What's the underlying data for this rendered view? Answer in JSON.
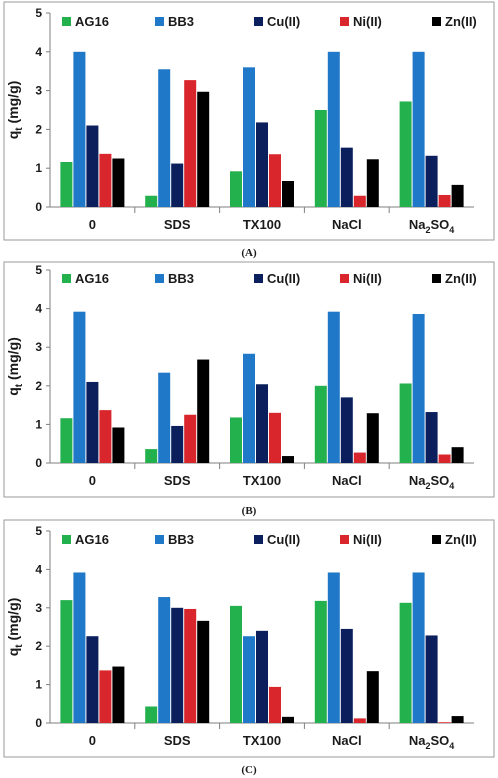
{
  "chart_data": [
    {
      "type": "bar",
      "caption": "(A)",
      "ylabel": "q",
      "ylabel_sub": "t",
      "ylabel_unit": " (mg/g)",
      "ylim": [
        0,
        5
      ],
      "yticks": [
        "0",
        "1",
        "2",
        "3",
        "4",
        "5"
      ],
      "categories": [
        "0",
        "SDS",
        "TX100",
        "NaCl",
        "Na2SO4"
      ],
      "category_labels": [
        {
          "text": "0"
        },
        {
          "text": "SDS"
        },
        {
          "text": "TX100"
        },
        {
          "text": "NaCl"
        },
        {
          "text": "Na",
          "sub": "2",
          "tail": "SO",
          "sub2": "4"
        }
      ],
      "series": [
        {
          "name": "AG16",
          "color": "#22b14c",
          "values": [
            1.16,
            0.29,
            0.92,
            2.5,
            2.72
          ]
        },
        {
          "name": "BB3",
          "color": "#1f78c8",
          "values": [
            4.0,
            3.55,
            3.6,
            4.0,
            4.0
          ]
        },
        {
          "name": "Cu(II)",
          "color": "#0a1f5c",
          "values": [
            2.1,
            1.12,
            2.18,
            1.53,
            1.32
          ]
        },
        {
          "name": "Ni(II)",
          "color": "#d9262c",
          "values": [
            1.37,
            3.27,
            1.36,
            0.29,
            0.31
          ]
        },
        {
          "name": "Zn(II)",
          "color": "#000000",
          "values": [
            1.25,
            2.97,
            0.67,
            1.23,
            0.57
          ]
        }
      ]
    },
    {
      "type": "bar",
      "caption": "(B)",
      "ylabel": "q",
      "ylabel_sub": "t",
      "ylabel_unit": " (mg/g)",
      "ylim": [
        0,
        5
      ],
      "yticks": [
        "0",
        "1",
        "2",
        "3",
        "4",
        "5"
      ],
      "categories": [
        "0",
        "SDS",
        "TX100",
        "NaCl",
        "Na2SO4"
      ],
      "category_labels": [
        {
          "text": "0"
        },
        {
          "text": "SDS"
        },
        {
          "text": "TX100"
        },
        {
          "text": "NaCl"
        },
        {
          "text": "Na",
          "sub": "2",
          "tail": "SO",
          "sub2": "4"
        }
      ],
      "series": [
        {
          "name": "AG16",
          "color": "#22b14c",
          "values": [
            1.16,
            0.36,
            1.18,
            2.0,
            2.06
          ]
        },
        {
          "name": "BB3",
          "color": "#1f78c8",
          "values": [
            3.92,
            2.34,
            2.83,
            3.92,
            3.86
          ]
        },
        {
          "name": "Cu(II)",
          "color": "#0a1f5c",
          "values": [
            2.1,
            0.96,
            2.04,
            1.7,
            1.32
          ]
        },
        {
          "name": "Ni(II)",
          "color": "#d9262c",
          "values": [
            1.37,
            1.25,
            1.3,
            0.27,
            0.22
          ]
        },
        {
          "name": "Zn(II)",
          "color": "#000000",
          "values": [
            0.92,
            2.68,
            0.18,
            1.29,
            0.41
          ]
        }
      ]
    },
    {
      "type": "bar",
      "caption": "(C)",
      "ylabel": "q",
      "ylabel_sub": "t",
      "ylabel_unit": " (mg/g)",
      "ylim": [
        0,
        5
      ],
      "yticks": [
        "0",
        "1",
        "2",
        "3",
        "4",
        "5"
      ],
      "categories": [
        "0",
        "SDS",
        "TX100",
        "NaCl",
        "Na2SO4"
      ],
      "category_labels": [
        {
          "text": "0"
        },
        {
          "text": "SDS"
        },
        {
          "text": "TX100"
        },
        {
          "text": "NaCl"
        },
        {
          "text": "Na",
          "sub": "2",
          "tail": "SO",
          "sub2": "4"
        }
      ],
      "series": [
        {
          "name": "AG16",
          "color": "#22b14c",
          "values": [
            3.2,
            0.43,
            3.05,
            3.18,
            3.13
          ]
        },
        {
          "name": "BB3",
          "color": "#1f78c8",
          "values": [
            3.92,
            3.28,
            2.26,
            3.92,
            3.92
          ]
        },
        {
          "name": "Cu(II)",
          "color": "#0a1f5c",
          "values": [
            2.26,
            3.0,
            2.4,
            2.45,
            2.28
          ]
        },
        {
          "name": "Ni(II)",
          "color": "#d9262c",
          "values": [
            1.37,
            2.97,
            0.94,
            0.12,
            0.02
          ]
        },
        {
          "name": "Zn(II)",
          "color": "#000000",
          "values": [
            1.47,
            2.66,
            0.16,
            1.35,
            0.18
          ]
        }
      ]
    }
  ]
}
